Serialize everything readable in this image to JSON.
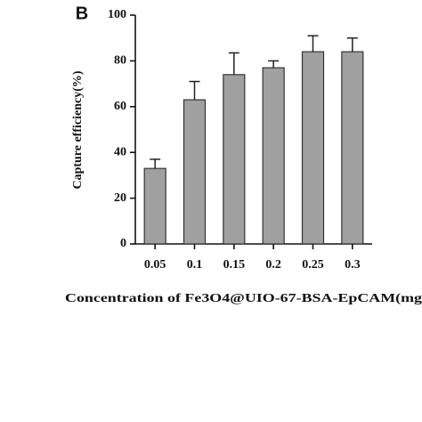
{
  "chart_data": {
    "type": "bar",
    "panel_label": "B",
    "x_label": "Concentration of Fe3O4@UIO-67-BSA-EpCAM(mg",
    "y_label": "Capture efficiency(%)",
    "categories": [
      "0.05",
      "0.1",
      "0.15",
      "0.2",
      "0.25",
      "0.3"
    ],
    "values": [
      33,
      63,
      74,
      77,
      84,
      84
    ],
    "errors": [
      4,
      8,
      9.5,
      3,
      7,
      6
    ],
    "color": "#a0a0a0",
    "ylim": [
      0,
      100
    ],
    "yticks": [
      0,
      20,
      40,
      60,
      80,
      100
    ],
    "grid": false
  }
}
